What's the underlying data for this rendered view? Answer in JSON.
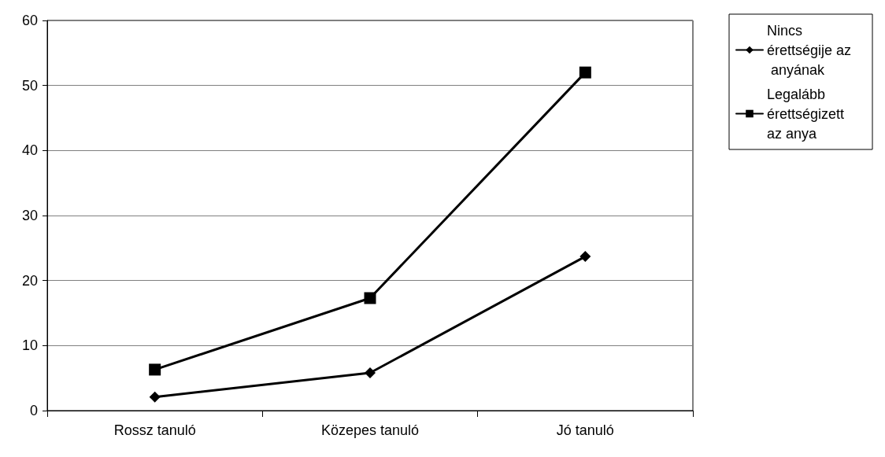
{
  "chart_data": {
    "type": "line",
    "categories": [
      "Rossz tanuló",
      "Közepes tanuló",
      "Jó tanuló"
    ],
    "series": [
      {
        "name": "Nincs érettségije az anyának",
        "color": "#000000",
        "marker": "diamond",
        "values": [
          2.1,
          5.8,
          23.7
        ]
      },
      {
        "name": "Legalább érettségizett az anya",
        "color": "#000000",
        "marker": "square",
        "values": [
          6.3,
          17.3,
          52.0
        ]
      }
    ],
    "ylim": [
      0,
      60
    ],
    "yticks": [
      0,
      10,
      20,
      30,
      40,
      50,
      60
    ],
    "grid": "y",
    "legend": "top right",
    "line_style": "solid"
  }
}
